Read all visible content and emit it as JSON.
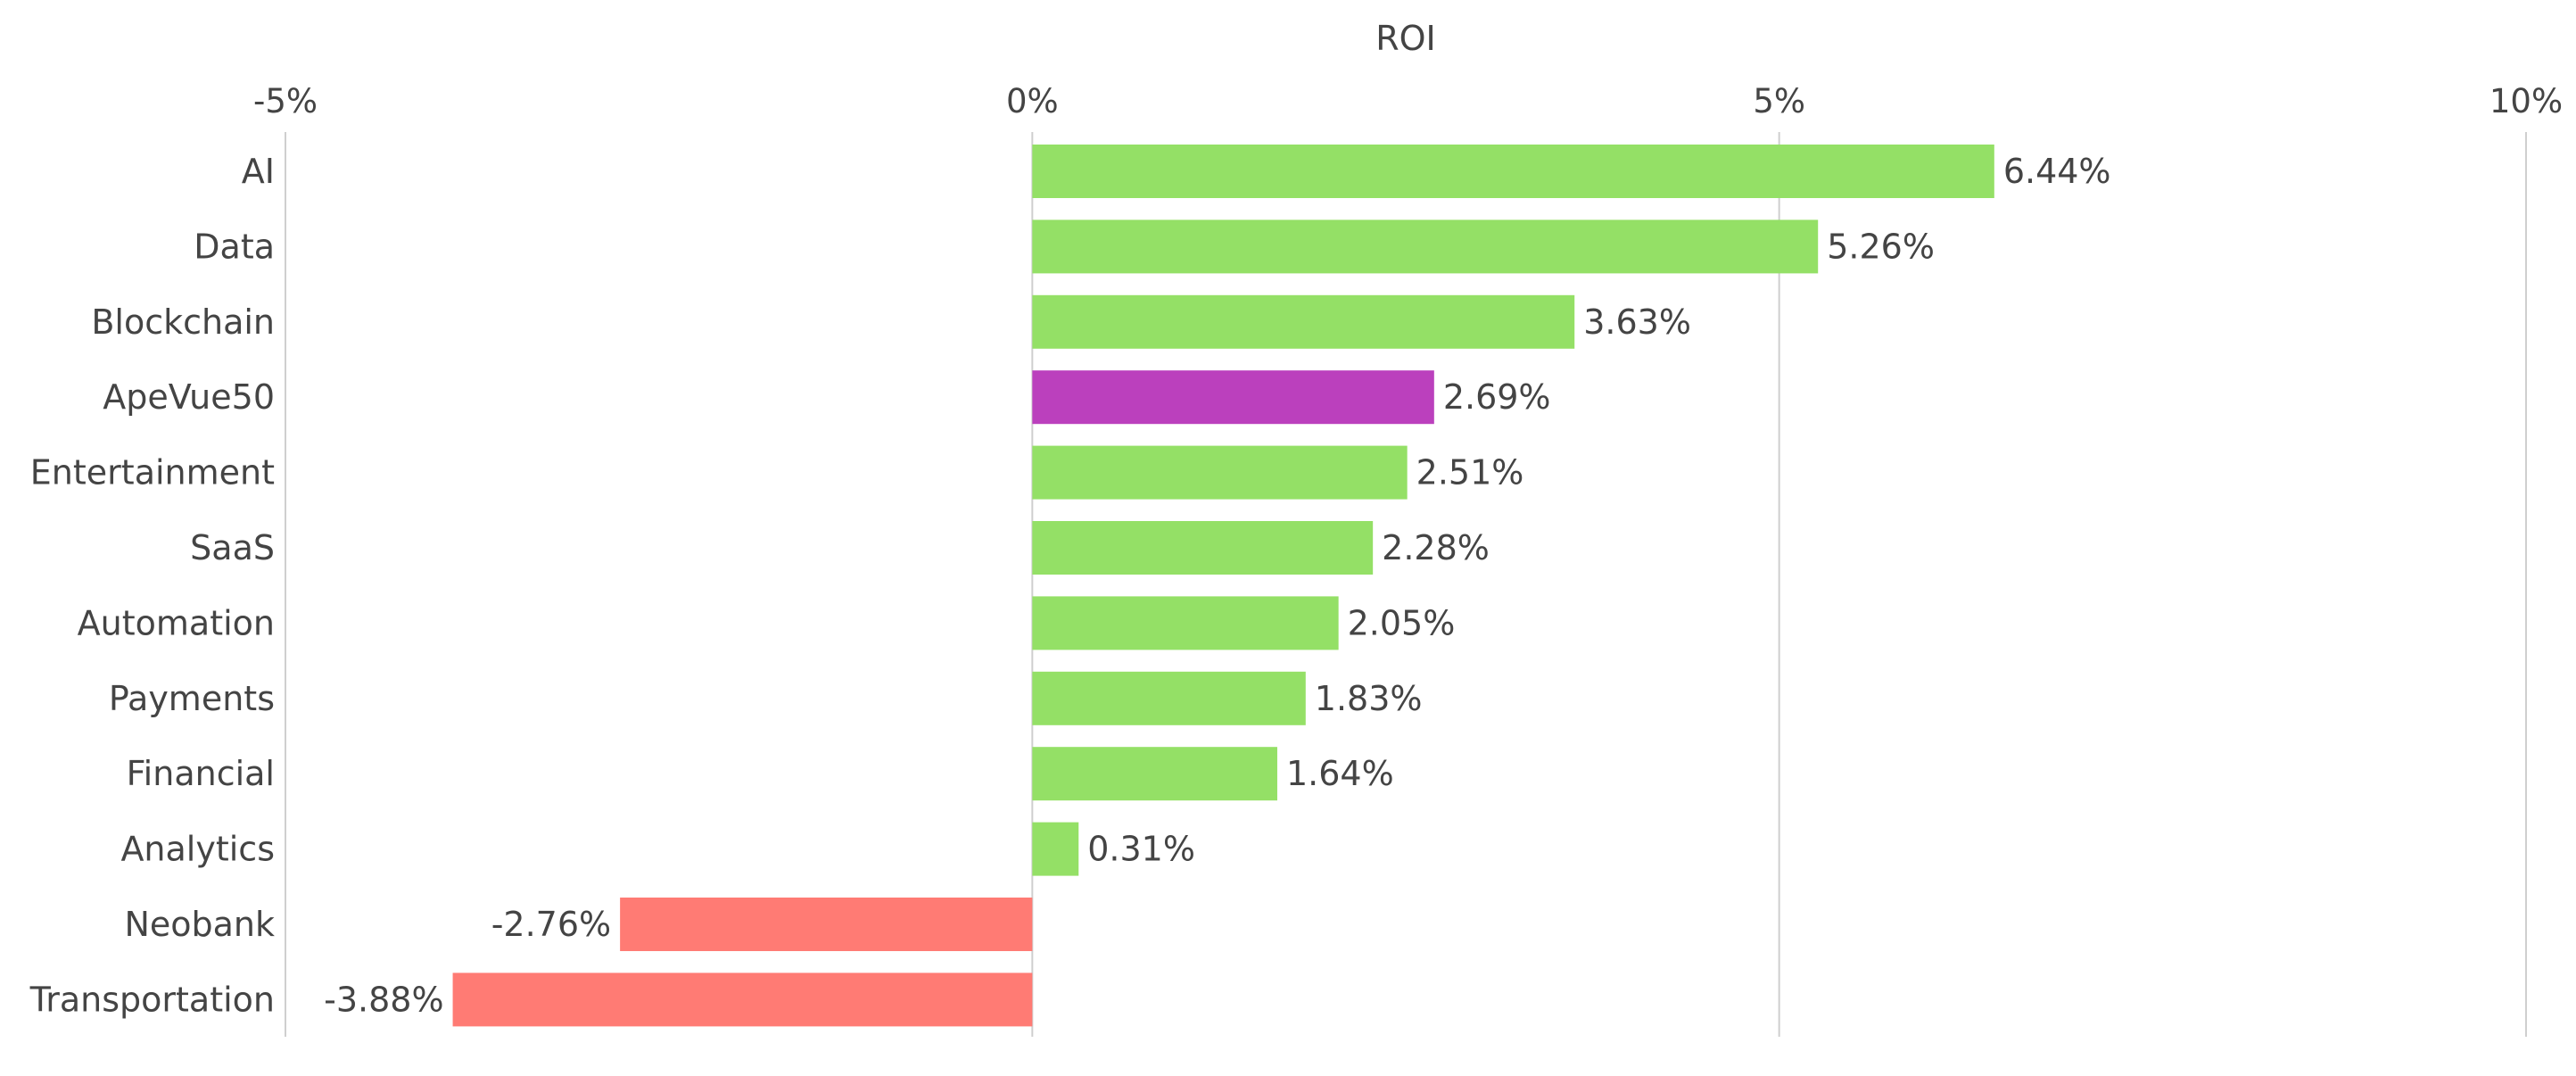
{
  "chart_data": {
    "type": "bar",
    "orientation": "horizontal",
    "title": "",
    "xlabel": "ROI",
    "ylabel": "",
    "xlim": [
      -5,
      10
    ],
    "x_ticks": [
      -5,
      0,
      5,
      10
    ],
    "x_tick_labels": [
      "-5%",
      "0%",
      "5%",
      "10%"
    ],
    "x_axis_position": "top",
    "grid": true,
    "legend": "none",
    "categories": [
      "AI",
      "Data",
      "Blockchain",
      "ApeVue50",
      "Entertainment",
      "SaaS",
      "Automation",
      "Payments",
      "Financial",
      "Analytics",
      "Neobank",
      "Transportation"
    ],
    "values": [
      6.44,
      5.26,
      3.63,
      2.69,
      2.51,
      2.28,
      2.05,
      1.83,
      1.64,
      0.31,
      -2.76,
      -3.88
    ],
    "value_labels": [
      "6.44%",
      "5.26%",
      "3.63%",
      "2.69%",
      "2.51%",
      "2.28%",
      "2.05%",
      "1.83%",
      "1.64%",
      "0.31%",
      "-2.76%",
      "-3.88%"
    ],
    "highlight_category": "ApeVue50",
    "colors": {
      "positive": "#94e066",
      "negative": "#ff7b74",
      "highlight": "#bb40bd"
    }
  }
}
